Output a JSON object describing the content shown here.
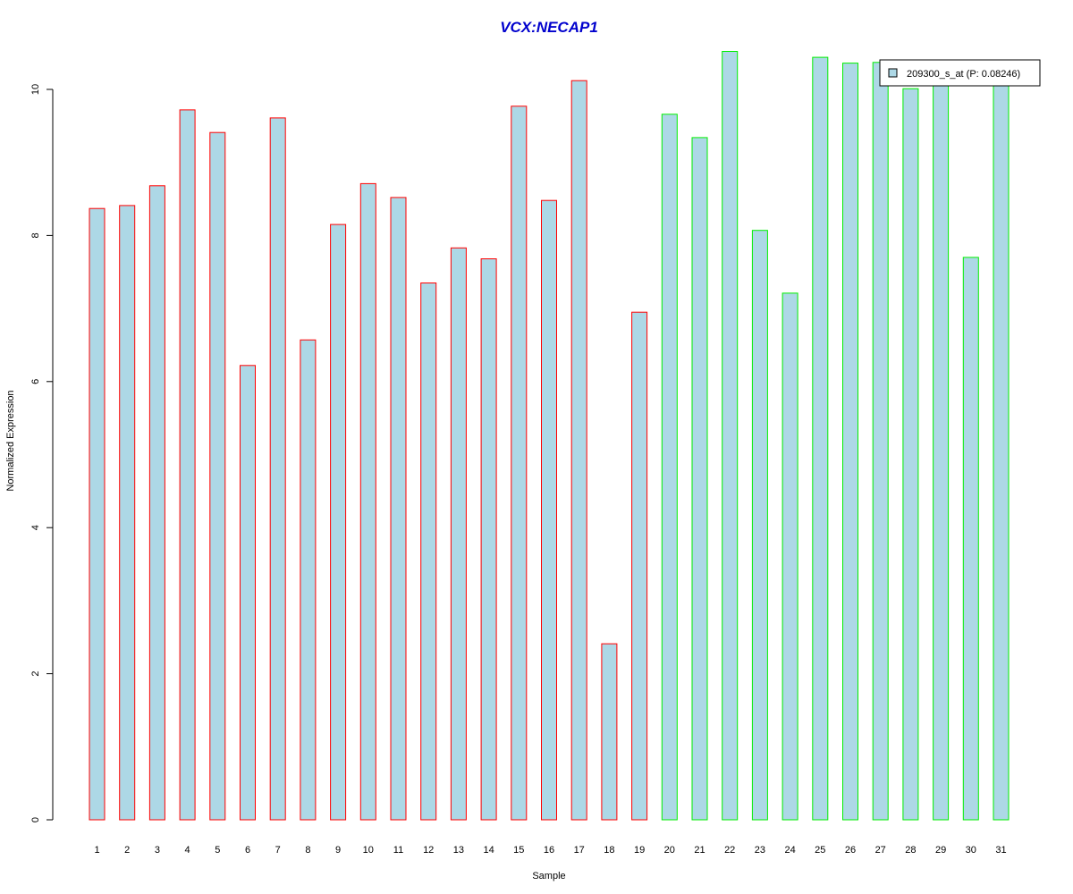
{
  "chart_data": {
    "type": "bar",
    "title": "VCX:NECAP1",
    "xlabel": "Sample",
    "ylabel": "Normalized Expression",
    "categories": [
      "1",
      "2",
      "3",
      "4",
      "5",
      "6",
      "7",
      "8",
      "9",
      "10",
      "11",
      "12",
      "13",
      "14",
      "15",
      "16",
      "17",
      "18",
      "19",
      "20",
      "21",
      "22",
      "23",
      "24",
      "25",
      "26",
      "27",
      "28",
      "29",
      "30",
      "31"
    ],
    "series": [
      {
        "name": "209300_s_at (P: 0.08246)",
        "values": [
          8.37,
          8.41,
          8.68,
          9.72,
          9.41,
          6.22,
          9.61,
          6.57,
          8.15,
          8.71,
          8.52,
          7.35,
          7.83,
          7.68,
          9.77,
          8.48,
          10.12,
          2.41,
          6.95,
          9.66,
          9.34,
          10.52,
          8.07,
          7.21,
          10.44,
          10.36,
          10.37,
          10.01,
          10.16,
          7.7,
          10.17
        ]
      }
    ],
    "group_edge_colors": [
      "#ff0000",
      "#ff0000",
      "#ff0000",
      "#ff0000",
      "#ff0000",
      "#ff0000",
      "#ff0000",
      "#ff0000",
      "#ff0000",
      "#ff0000",
      "#ff0000",
      "#ff0000",
      "#ff0000",
      "#ff0000",
      "#ff0000",
      "#ff0000",
      "#ff0000",
      "#ff0000",
      "#ff0000",
      "#00ee00",
      "#00ee00",
      "#00ee00",
      "#00ee00",
      "#00ee00",
      "#00ee00",
      "#00ee00",
      "#00ee00",
      "#00ee00",
      "#00ee00",
      "#00ee00",
      "#00ee00"
    ],
    "bar_fill": "#add8e6",
    "title_color": "#0000cd",
    "yticks": [
      0,
      2,
      4,
      6,
      8,
      10
    ],
    "ylim": [
      0,
      10.52
    ],
    "grid": false,
    "legend_position": "top-right"
  }
}
